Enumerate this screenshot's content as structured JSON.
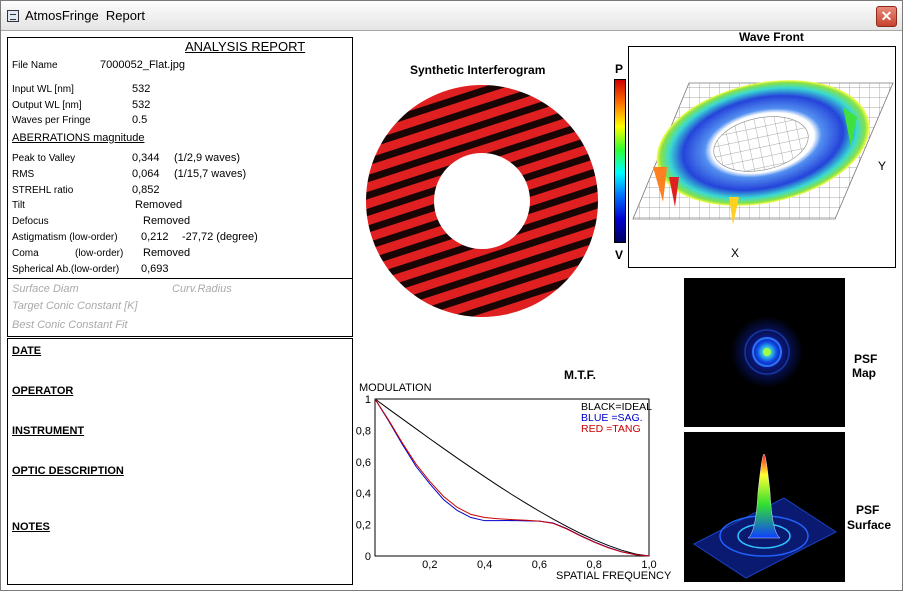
{
  "window": {
    "title": "AtmosFringe  Report",
    "close_glyph": "✕"
  },
  "report": {
    "heading": "ANALYSIS  REPORT",
    "file_name_label": "File Name",
    "file_name_value": "7000052_Flat.jpg",
    "input_wl_label": "Input  WL [nm]",
    "input_wl_value": "532",
    "output_wl_label": "Output WL [nm]",
    "output_wl_value": "532",
    "waves_label": "Waves per Fringe",
    "waves_value": "0.5",
    "aberr_heading": "ABERRATIONS magnitude",
    "ptv_label": "Peak to Valley",
    "ptv_value": "0,344",
    "ptv_waves": "(1/2,9 waves)",
    "rms_label": "RMS",
    "rms_value": "0,064",
    "rms_waves": "(1/15,7 waves)",
    "strehl_label": "STREHL ratio",
    "strehl_value": "0,852",
    "tilt_label": "Tilt",
    "tilt_value": "Removed",
    "defocus_label": "Defocus",
    "defocus_value": "Removed",
    "astig_label": "Astigmatism  (low-order)",
    "astig_value": "0,212",
    "astig_angle": "-27,72  (degree)",
    "coma_label": "Coma",
    "coma_order": "(low-order)",
    "coma_value": "Removed",
    "spherical_label": "Spherical Ab.(low-order)",
    "spherical_value": "0,693",
    "surface_diam": "Surface Diam",
    "curv_radius": "Curv.Radius",
    "target_conic": "Target Conic Constant [K]",
    "best_conic": "Best Conic Constant Fit"
  },
  "info": {
    "date": "DATE",
    "operator": "OPERATOR",
    "instrument": "INSTRUMENT",
    "optic_description": "OPTIC DESCRIPTION",
    "notes": "NOTES"
  },
  "interferogram": {
    "title": "Synthetic Interferogram"
  },
  "colorbar": {
    "top": "P",
    "bottom": "V"
  },
  "wavefront": {
    "title": "Wave Front",
    "x_label": "X",
    "y_label": "Y"
  },
  "psf": {
    "map_label_1": "PSF",
    "map_label_2": "Map",
    "surface_label_1": "PSF",
    "surface_label_2": "Surface"
  },
  "chart_data": {
    "type": "line",
    "title": "M.T.F.",
    "ylabel": "MODULATION",
    "xlabel": "SPATIAL FREQUENCY",
    "xlim": [
      0,
      1
    ],
    "ylim": [
      0,
      1
    ],
    "x_ticks": [
      "0,2",
      "0,4",
      "0,6",
      "0,8",
      "1,0"
    ],
    "y_ticks": [
      "0",
      "0,2",
      "0,4",
      "0,6",
      "0,8",
      "1"
    ],
    "legend": {
      "placement": "top-right",
      "entries": [
        {
          "text": "BLACK=IDEAL",
          "color": "#000000"
        },
        {
          "text": "BLUE  =SAG.",
          "color": "#0000cc"
        },
        {
          "text": "RED    =TANG",
          "color": "#cc0000"
        }
      ]
    },
    "x": [
      0,
      0.05,
      0.1,
      0.15,
      0.2,
      0.25,
      0.3,
      0.35,
      0.4,
      0.45,
      0.5,
      0.55,
      0.6,
      0.65,
      0.7,
      0.75,
      0.8,
      0.85,
      0.9,
      0.95,
      1.0
    ],
    "series": [
      {
        "name": "IDEAL",
        "color": "#000000",
        "values": [
          1.0,
          0.936,
          0.873,
          0.81,
          0.747,
          0.685,
          0.624,
          0.564,
          0.505,
          0.447,
          0.391,
          0.337,
          0.285,
          0.235,
          0.188,
          0.144,
          0.104,
          0.068,
          0.037,
          0.013,
          0.0
        ]
      },
      {
        "name": "SAG.",
        "color": "#0000cc",
        "values": [
          1.0,
          0.86,
          0.71,
          0.57,
          0.46,
          0.36,
          0.29,
          0.245,
          0.225,
          0.225,
          0.226,
          0.224,
          0.222,
          0.21,
          0.175,
          0.13,
          0.09,
          0.055,
          0.027,
          0.009,
          0.0
        ]
      },
      {
        "name": "TANG",
        "color": "#cc0000",
        "values": [
          1.0,
          0.865,
          0.72,
          0.585,
          0.475,
          0.38,
          0.31,
          0.265,
          0.245,
          0.237,
          0.232,
          0.228,
          0.222,
          0.208,
          0.172,
          0.128,
          0.088,
          0.053,
          0.026,
          0.009,
          0.0
        ]
      }
    ]
  },
  "colors": {
    "fringe_red": "#e02020",
    "fringe_dark": "#1a0505",
    "sag": "#0000cc",
    "tang": "#cc0000"
  }
}
